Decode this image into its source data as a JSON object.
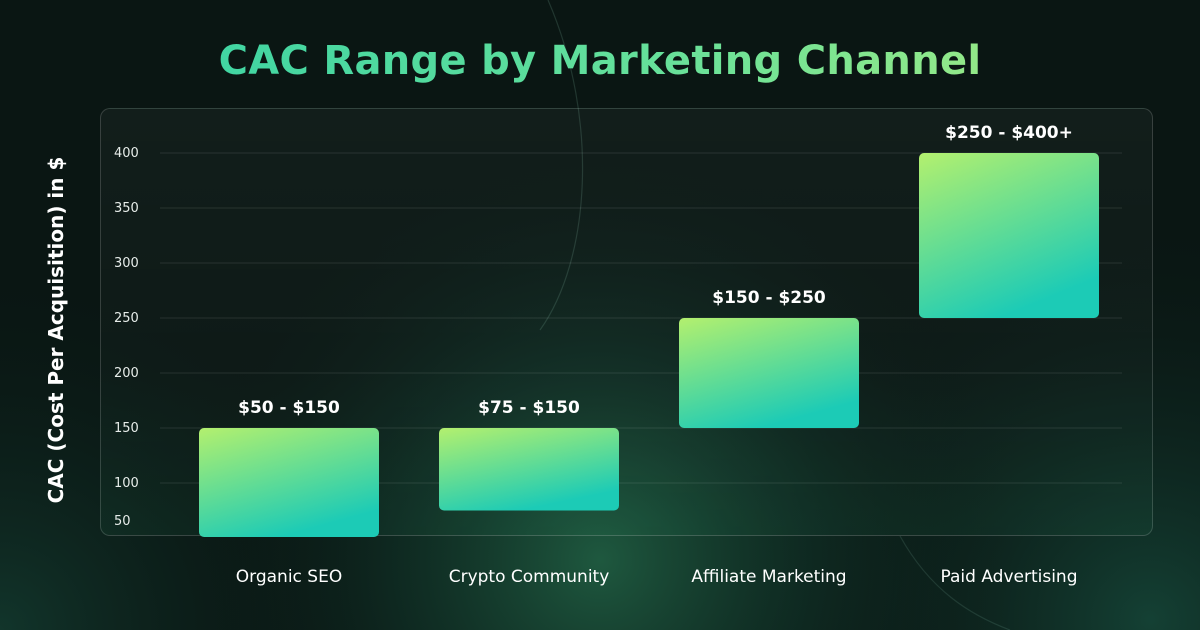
{
  "chart_data": {
    "type": "bar",
    "title": "CAC Range by Marketing Channel",
    "ylabel": "CAC (Cost Per Acquisition) in $",
    "xlabel": "",
    "categories": [
      "Organic SEO",
      "Crypto Community",
      "Affiliate Marketing",
      "Paid Advertising"
    ],
    "ranges": [
      [
        50,
        150
      ],
      [
        75,
        150
      ],
      [
        150,
        250
      ],
      [
        250,
        400
      ]
    ],
    "labels": [
      "$50 - $150",
      "$75 - $150",
      "$150 - $250",
      "$250 - $400+"
    ],
    "yticks": [
      50,
      100,
      150,
      200,
      250,
      300,
      350,
      400
    ],
    "ylim": [
      50,
      400
    ],
    "grid": true,
    "colors": {
      "bar_top": "#b3f06e",
      "bar_bottom": "#1ccbb6",
      "title_start": "#2fd0a6",
      "title_end": "#b2ef7c"
    }
  }
}
